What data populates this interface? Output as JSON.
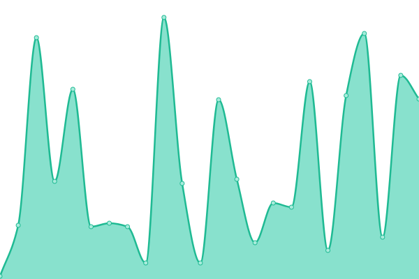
{
  "chart_data": {
    "type": "area",
    "values": [
      4,
      77,
      346,
      140,
      272,
      75,
      80,
      75,
      23,
      375,
      137,
      23,
      257,
      143,
      52,
      109,
      103,
      283,
      41,
      263,
      352,
      60,
      292,
      258
    ],
    "color": "#1fba93",
    "fill": "#88e1cd",
    "ylim": [
      0,
      400
    ]
  }
}
